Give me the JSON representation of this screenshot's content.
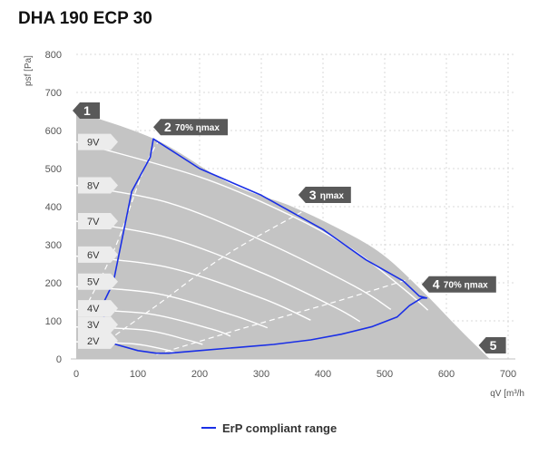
{
  "title": "DHA 190 ECP 30",
  "chart_data": {
    "type": "line",
    "xlabel": "qV [m³/h",
    "ylabel": "psf [Pa]",
    "xlim": [
      0,
      700
    ],
    "ylim": [
      0,
      800
    ],
    "xticks": [
      "0",
      "100",
      "200",
      "300",
      "400",
      "500",
      "600",
      "700"
    ],
    "yticks": [
      "0",
      "100",
      "200",
      "300",
      "400",
      "500",
      "600",
      "700",
      "800"
    ],
    "grid": true,
    "area_boundary": [
      [
        0,
        650
      ],
      [
        130,
        575
      ],
      [
        250,
        460
      ],
      [
        350,
        400
      ],
      [
        440,
        330
      ],
      [
        500,
        270
      ],
      [
        560,
        180
      ],
      [
        620,
        80
      ],
      [
        670,
        0
      ]
    ],
    "fan_curves": [
      {
        "label": "9V",
        "points": [
          [
            0,
            570
          ],
          [
            200,
            478
          ],
          [
            350,
            375
          ],
          [
            450,
            285
          ],
          [
            530,
            185
          ],
          [
            570,
            128
          ]
        ]
      },
      {
        "label": "8V",
        "points": [
          [
            0,
            456
          ],
          [
            150,
            410
          ],
          [
            300,
            312
          ],
          [
            450,
            192
          ],
          [
            510,
            130
          ]
        ]
      },
      {
        "label": "7V",
        "points": [
          [
            0,
            362
          ],
          [
            150,
            318
          ],
          [
            300,
            227
          ],
          [
            420,
            135
          ],
          [
            460,
            98
          ]
        ]
      },
      {
        "label": "6V",
        "points": [
          [
            0,
            270
          ],
          [
            150,
            240
          ],
          [
            300,
            160
          ],
          [
            380,
            102
          ]
        ]
      },
      {
        "label": "5V",
        "points": [
          [
            0,
            190
          ],
          [
            130,
            172
          ],
          [
            250,
            117
          ],
          [
            310,
            82
          ]
        ]
      },
      {
        "label": "4V",
        "points": [
          [
            0,
            130
          ],
          [
            120,
            118
          ],
          [
            220,
            78
          ],
          [
            250,
            60
          ]
        ]
      },
      {
        "label": "3V",
        "points": [
          [
            0,
            84
          ],
          [
            110,
            76
          ],
          [
            180,
            50
          ],
          [
            205,
            38
          ]
        ]
      },
      {
        "label": "2V",
        "points": [
          [
            0,
            45
          ],
          [
            90,
            40
          ],
          [
            140,
            26
          ],
          [
            160,
            17
          ]
        ]
      }
    ],
    "efficiency_lines": [
      {
        "points": [
          [
            20,
            150
          ],
          [
            65,
            300
          ],
          [
            110,
            500
          ],
          [
            140,
            590
          ]
        ]
      },
      {
        "points": [
          [
            40,
            35
          ],
          [
            130,
            140
          ],
          [
            240,
            270
          ],
          [
            370,
            390
          ]
        ]
      },
      {
        "points": [
          [
            130,
            12
          ],
          [
            280,
            85
          ],
          [
            430,
            155
          ],
          [
            570,
            225
          ]
        ]
      }
    ],
    "series": [
      {
        "name": "ErP compliant range",
        "color": "#1a2fe6",
        "points": [
          [
            45,
            150
          ],
          [
            60,
            200
          ],
          [
            90,
            440
          ],
          [
            120,
            530
          ],
          [
            125,
            578
          ],
          [
            200,
            500
          ],
          [
            300,
            430
          ],
          [
            400,
            340
          ],
          [
            470,
            260
          ],
          [
            530,
            205
          ],
          [
            556,
            165
          ],
          [
            568,
            160
          ],
          [
            560,
            160
          ],
          [
            540,
            140
          ],
          [
            520,
            110
          ],
          [
            480,
            85
          ],
          [
            430,
            65
          ],
          [
            380,
            50
          ],
          [
            320,
            38
          ],
          [
            260,
            30
          ],
          [
            200,
            22
          ],
          [
            150,
            15
          ],
          [
            130,
            15
          ],
          [
            100,
            22
          ],
          [
            60,
            40
          ],
          [
            45,
            40
          ]
        ]
      }
    ],
    "voltage_labels": [
      {
        "label": "9V",
        "y": 570
      },
      {
        "label": "8V",
        "y": 456
      },
      {
        "label": "7V",
        "y": 362
      },
      {
        "label": "6V",
        "y": 274
      },
      {
        "label": "5V",
        "y": 203
      },
      {
        "label": "4V",
        "y": 133
      },
      {
        "label": "3V",
        "y": 90
      },
      {
        "label": "2V",
        "y": 48
      }
    ],
    "points": [
      {
        "id": "1",
        "text": "",
        "x": 0,
        "y": 650
      },
      {
        "id": "2",
        "text": "70% ηmax",
        "x": 125,
        "y": 578
      },
      {
        "id": "3",
        "text": "ηmax",
        "x": 360,
        "y": 400
      },
      {
        "id": "4",
        "text": "70% ηmax",
        "x": 560,
        "y": 165
      },
      {
        "id": "5",
        "text": "",
        "x": 670,
        "y": 0
      }
    ]
  },
  "legend": {
    "label": "ErP compliant range",
    "placement": "bottom"
  }
}
